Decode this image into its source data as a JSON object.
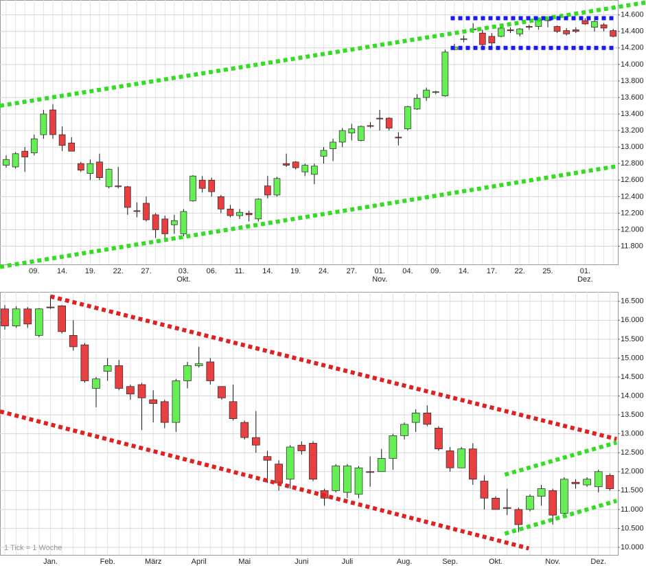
{
  "chart_data": [
    {
      "type": "candlestick",
      "categories": [
        null,
        null,
        null,
        "09.",
        null,
        null,
        "14.",
        null,
        null,
        "19.",
        null,
        null,
        "22.",
        null,
        null,
        "27.",
        null,
        null,
        null,
        "03.",
        null,
        null,
        "06.",
        null,
        null,
        "11.",
        null,
        null,
        "14.",
        null,
        null,
        "19.",
        null,
        null,
        "24.",
        null,
        null,
        "27.",
        null,
        null,
        "01.",
        null,
        null,
        "04.",
        null,
        null,
        "09.",
        null,
        null,
        "14.",
        null,
        null,
        "17.",
        null,
        null,
        "22.",
        null,
        null,
        "25.",
        null,
        null,
        null,
        "01.",
        null,
        null,
        null
      ],
      "month_labels": [
        null,
        null,
        null,
        null,
        null,
        null,
        null,
        null,
        null,
        null,
        null,
        null,
        null,
        null,
        null,
        null,
        null,
        null,
        null,
        "Okt.",
        null,
        null,
        null,
        null,
        null,
        null,
        null,
        null,
        null,
        null,
        null,
        null,
        null,
        null,
        null,
        null,
        null,
        null,
        null,
        null,
        "Nov.",
        null,
        null,
        null,
        null,
        null,
        null,
        null,
        null,
        null,
        null,
        null,
        null,
        null,
        null,
        null,
        null,
        null,
        null,
        null,
        null,
        null,
        "Dez.",
        null,
        null,
        null
      ],
      "open": [
        12780,
        12760,
        12950,
        12930,
        13150,
        13450,
        13150,
        13050,
        12800,
        12680,
        12820,
        12520,
        12530,
        12520,
        12230,
        12320,
        12180,
        12130,
        12060,
        11950,
        12350,
        12600,
        12600,
        12400,
        12250,
        12170,
        12200,
        12130,
        12530,
        12420,
        12800,
        12820,
        12700,
        12670,
        12890,
        12980,
        13060,
        13170,
        13080,
        13260,
        13350,
        13350,
        13120,
        13220,
        13460,
        13600,
        13660,
        13620,
        14180,
        14300,
        14420,
        14380,
        14340,
        14340,
        14420,
        14370,
        14460,
        14460,
        14540,
        14460,
        14410,
        14420,
        14530,
        14450,
        14480,
        14410
      ],
      "high": [
        12900,
        12940,
        13000,
        13150,
        13450,
        13520,
        13250,
        13120,
        12820,
        12850,
        12920,
        12740,
        12760,
        12530,
        12330,
        12400,
        12200,
        12170,
        12180,
        12250,
        12660,
        12650,
        12630,
        12420,
        12300,
        12250,
        12230,
        12380,
        12650,
        12640,
        12920,
        12830,
        12800,
        12800,
        13000,
        13100,
        13230,
        13280,
        13260,
        13300,
        13450,
        13360,
        13180,
        13500,
        13640,
        13720,
        13680,
        14180,
        14250,
        14350,
        14500,
        14420,
        14380,
        14470,
        14450,
        14440,
        14480,
        14570,
        14560,
        14470,
        14440,
        14450,
        14560,
        14540,
        14500,
        14430
      ],
      "low": [
        12750,
        12740,
        12700,
        12900,
        13100,
        13100,
        12950,
        12950,
        12700,
        12600,
        12600,
        12500,
        12500,
        12180,
        12150,
        12100,
        11900,
        11900,
        11950,
        11920,
        12340,
        12450,
        12400,
        12200,
        12150,
        12130,
        12100,
        12100,
        12380,
        12400,
        12760,
        12730,
        12650,
        12550,
        12800,
        12830,
        13000,
        13080,
        13070,
        13230,
        13200,
        13200,
        13020,
        13200,
        13450,
        13560,
        13640,
        13610,
        14170,
        14270,
        14380,
        14200,
        14220,
        14330,
        14380,
        14340,
        14420,
        14420,
        14450,
        14380,
        14350,
        14380,
        14480,
        14400,
        14400,
        14330
      ],
      "close": [
        12850,
        12920,
        12880,
        13100,
        13400,
        13150,
        13020,
        12950,
        12720,
        12800,
        12630,
        12730,
        12520,
        12270,
        12220,
        12120,
        12000,
        11950,
        12110,
        12220,
        12650,
        12500,
        12460,
        12250,
        12170,
        12210,
        12180,
        12370,
        12420,
        12620,
        12780,
        12750,
        12780,
        12770,
        12960,
        13060,
        13200,
        13220,
        13250,
        13250,
        13340,
        13230,
        13110,
        13490,
        13590,
        13690,
        13670,
        14150,
        14210,
        14310,
        14430,
        14240,
        14260,
        14440,
        14410,
        14430,
        14450,
        14540,
        14530,
        14400,
        14370,
        14400,
        14490,
        14520,
        14440,
        14340
      ],
      "up_color": "#66ee55",
      "down_color": "#e84040",
      "xlim": [
        -0.66,
        65.5
      ],
      "ylim": [
        11580,
        14780
      ],
      "yticks": [
        {
          "value": 11800,
          "label": "11.800"
        },
        {
          "value": 12000,
          "label": "12.000"
        },
        {
          "value": 12200,
          "label": "12.200"
        },
        {
          "value": 12400,
          "label": "12.400"
        },
        {
          "value": 12600,
          "label": "12.600"
        },
        {
          "value": 12800,
          "label": "12.800"
        },
        {
          "value": 13000,
          "label": "13.000"
        },
        {
          "value": 13200,
          "label": "13.200"
        },
        {
          "value": 13400,
          "label": "13.400"
        },
        {
          "value": 13600,
          "label": "13.600"
        },
        {
          "value": 13800,
          "label": "13.800"
        },
        {
          "value": 14000,
          "label": "14.000"
        },
        {
          "value": 14200,
          "label": "14.200"
        },
        {
          "value": 14400,
          "label": "14.400"
        },
        {
          "value": 14600,
          "label": "14.600"
        }
      ],
      "grid": true,
      "lines": [
        {
          "color": "#33dd22",
          "x": [
            -0.66,
            68.5
          ],
          "y": [
            13500,
            14750
          ]
        },
        {
          "color": "#33dd22",
          "x": [
            -0.66,
            65.5
          ],
          "y": [
            11550,
            12770
          ]
        },
        {
          "color": "#1a1aee",
          "x": [
            47.6,
            65.4
          ],
          "y": [
            14560,
            14560
          ]
        },
        {
          "color": "#1a1aee",
          "x": [
            47.6,
            65.4
          ],
          "y": [
            14200,
            14200
          ]
        }
      ]
    },
    {
      "type": "candlestick",
      "categories": [
        null,
        null,
        null,
        null,
        "Jan.",
        null,
        null,
        null,
        null,
        "Feb.",
        null,
        null,
        null,
        "März",
        null,
        null,
        null,
        "April",
        null,
        null,
        null,
        "Mai",
        null,
        null,
        null,
        null,
        "Juni",
        null,
        null,
        null,
        "Juli",
        null,
        null,
        null,
        null,
        "Aug.",
        null,
        null,
        null,
        "Sep.",
        null,
        null,
        null,
        "Okt.",
        null,
        null,
        null,
        null,
        "Nov.",
        null,
        null,
        null,
        "Dez.",
        null
      ],
      "open": [
        16300,
        15850,
        16300,
        15600,
        16350,
        16380,
        15600,
        15350,
        14200,
        14650,
        14800,
        14250,
        14300,
        13900,
        13850,
        13300,
        14400,
        14800,
        14900,
        14250,
        13850,
        13300,
        12900,
        12400,
        12200,
        11800,
        12700,
        12750,
        11500,
        11500,
        11450,
        11400,
        12000,
        12000,
        12350,
        12950,
        13300,
        13550,
        13150,
        12550,
        12100,
        12600,
        11750,
        11300,
        11050,
        11000,
        11000,
        11350,
        11500,
        10900,
        11720,
        11650,
        11600,
        11900
      ],
      "high": [
        16400,
        16370,
        16350,
        16320,
        16650,
        16400,
        16000,
        15400,
        14500,
        15000,
        14950,
        14300,
        14350,
        14150,
        13900,
        14450,
        14900,
        15300,
        15000,
        14250,
        14300,
        13350,
        13600,
        12550,
        12300,
        12700,
        12800,
        12800,
        11550,
        12200,
        12200,
        12150,
        12400,
        12600,
        13000,
        13300,
        13650,
        13750,
        13200,
        12650,
        12650,
        12750,
        11900,
        11350,
        11550,
        11050,
        11400,
        11650,
        11550,
        11850,
        11800,
        11850,
        12050,
        11950
      ],
      "low": [
        15750,
        15800,
        15800,
        15550,
        16300,
        15650,
        15200,
        14350,
        13700,
        14400,
        14150,
        13900,
        13100,
        13300,
        13150,
        13050,
        14200,
        14750,
        14300,
        13900,
        13350,
        12850,
        12500,
        11700,
        11500,
        11550,
        12450,
        11750,
        11100,
        11450,
        11300,
        11300,
        11600,
        12000,
        12050,
        12850,
        13050,
        13200,
        12550,
        12000,
        12100,
        11650,
        11000,
        11000,
        10850,
        10400,
        10950,
        11100,
        10600,
        10800,
        11550,
        11600,
        11450,
        11500
      ],
      "close": [
        15850,
        16300,
        15900,
        16300,
        16330,
        15700,
        15300,
        14400,
        14450,
        14800,
        14200,
        14050,
        13950,
        13800,
        13300,
        14400,
        14800,
        14850,
        14400,
        13950,
        13400,
        12900,
        12700,
        12300,
        11700,
        12650,
        12550,
        11800,
        11300,
        12150,
        12150,
        12100,
        11990,
        12350,
        12950,
        13250,
        13550,
        13250,
        12600,
        12100,
        12600,
        11800,
        11300,
        11000,
        11040,
        10600,
        11350,
        11550,
        10850,
        11800,
        11680,
        11800,
        12000,
        11550
      ],
      "up_color": "#66ee55",
      "down_color": "#e84040",
      "xlim": [
        -0.42,
        53.7
      ],
      "ylim": [
        9800,
        16750
      ],
      "yticks": [
        {
          "value": 10000,
          "label": "10.000"
        },
        {
          "value": 10500,
          "label": "10.500"
        },
        {
          "value": 11000,
          "label": "11.000"
        },
        {
          "value": 11500,
          "label": "11.500"
        },
        {
          "value": 12000,
          "label": "12.000"
        },
        {
          "value": 12500,
          "label": "12.500"
        },
        {
          "value": 13000,
          "label": "13.000"
        },
        {
          "value": 13500,
          "label": "13.500"
        },
        {
          "value": 14000,
          "label": "14.000"
        },
        {
          "value": 14500,
          "label": "14.500"
        },
        {
          "value": 15000,
          "label": "15.000"
        },
        {
          "value": 15500,
          "label": "15.500"
        },
        {
          "value": 16000,
          "label": "16.000"
        },
        {
          "value": 16500,
          "label": "16.500"
        }
      ],
      "grid": true,
      "annotation": "1 Tick = 1 Woche",
      "lines": [
        {
          "color": "#dd2222",
          "x": [
            4,
            53.6
          ],
          "y": [
            16630,
            12860
          ]
        },
        {
          "color": "#dd2222",
          "x": [
            -0.42,
            45.9
          ],
          "y": [
            13590,
            9970
          ]
        },
        {
          "color": "#33dd22",
          "x": [
            43.8,
            53.6
          ],
          "y": [
            11920,
            12770
          ]
        },
        {
          "color": "#33dd22",
          "x": [
            43.8,
            53.6
          ],
          "y": [
            10360,
            11230
          ]
        }
      ]
    }
  ]
}
